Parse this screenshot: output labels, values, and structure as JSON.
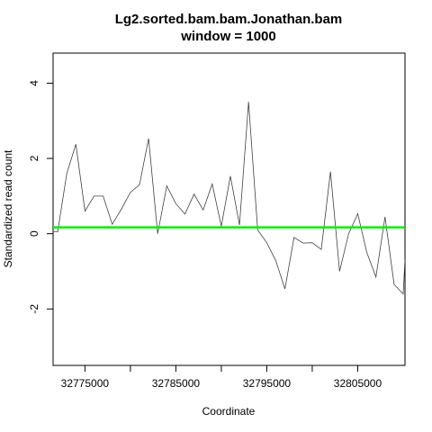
{
  "chart_data": {
    "type": "line",
    "title": "Lg2.sorted.bam.bam.Jonathan.bam",
    "subtitle": "window = 1000",
    "xlabel": "Coordinate",
    "ylabel": "Standardized read count",
    "xlim": [
      32771500,
      32810200
    ],
    "ylim": [
      -3.5,
      4.8
    ],
    "x_ticks": [
      32775000,
      32785000,
      32795000,
      32805000
    ],
    "x_minor_ticks": [
      32780000,
      32790000,
      32800000
    ],
    "y_ticks": [
      -2,
      0,
      2,
      4
    ],
    "grid": false,
    "series": [
      {
        "color": "#404040",
        "x": [
          32771500,
          32772000,
          32773000,
          32774000,
          32775000,
          32776000,
          32777000,
          32778000,
          32779000,
          32780000,
          32781000,
          32782000,
          32783000,
          32784000,
          32785000,
          32786000,
          32787000,
          32788000,
          32789000,
          32790000,
          32791000,
          32792000,
          32793000,
          32794000,
          32795000,
          32796000,
          32797000,
          32798000,
          32799000,
          32800000,
          32801000,
          32802000,
          32803000,
          32804000,
          32805000,
          32806000,
          32807000,
          32808000,
          32809000,
          32810000,
          32810200
        ],
        "y": [
          0.05,
          0.05,
          1.6,
          2.38,
          0.6,
          1.0,
          1.0,
          0.25,
          0.65,
          1.1,
          1.3,
          2.53,
          0.0,
          1.27,
          0.8,
          0.52,
          1.05,
          0.63,
          1.32,
          0.2,
          1.53,
          0.23,
          3.5,
          0.1,
          -0.24,
          -0.72,
          -1.47,
          -0.1,
          -0.25,
          -0.24,
          -0.42,
          1.65,
          -1.0,
          0.0,
          0.53,
          -0.5,
          -1.15,
          0.45,
          -1.35,
          -1.6,
          -0.68
        ]
      }
    ],
    "reference_line": {
      "y": 0.17,
      "color": "#00ee00"
    }
  }
}
